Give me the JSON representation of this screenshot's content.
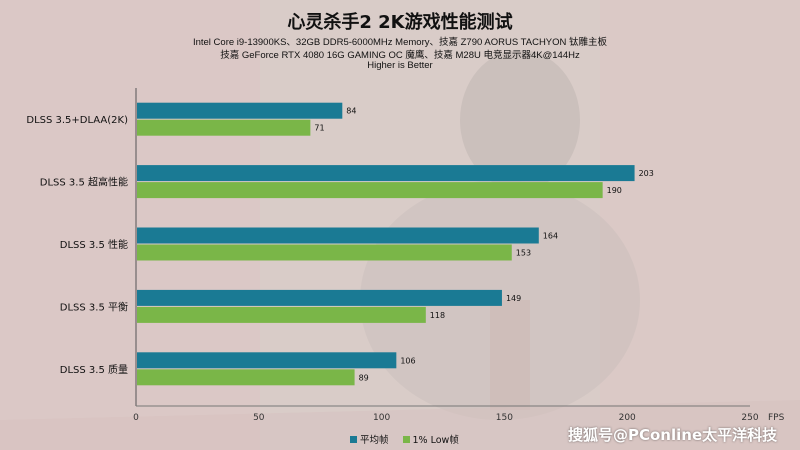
{
  "title": "心灵杀手2  2K游戏性能测试",
  "subtitle_lines": [
    "Intel Core i9-13900KS、32GB DDR5-6000MHz Memory、技嘉 Z790 AORUS TACHYON 钛雕主板",
    "技嘉 GeForce RTX 4080 16G GAMING OC 魔鹰、技嘉 M28U 电竞显示器4K@144Hz",
    "Higher is Better"
  ],
  "watermark": "搜狐号@PConline太平洋科技",
  "colors": {
    "avg": "#1a7a94",
    "low": "#7ab648"
  },
  "chart_data": {
    "type": "bar",
    "orientation": "horizontal",
    "categories": [
      "DLSS 3.5+DLAA(2K)",
      "DLSS 3.5 超高性能",
      "DLSS 3.5 性能",
      "DLSS 3.5 平衡",
      "DLSS 3.5 质量"
    ],
    "series": [
      {
        "name": "平均帧",
        "values": [
          84,
          203,
          164,
          149,
          106
        ]
      },
      {
        "name": "1% Low帧",
        "values": [
          71,
          190,
          153,
          118,
          89
        ]
      }
    ],
    "xlim": [
      0,
      250
    ],
    "xticks": [
      "0",
      "50",
      "100",
      "150",
      "200",
      "250"
    ],
    "xunit": "FPS",
    "legend_position": "bottom"
  }
}
